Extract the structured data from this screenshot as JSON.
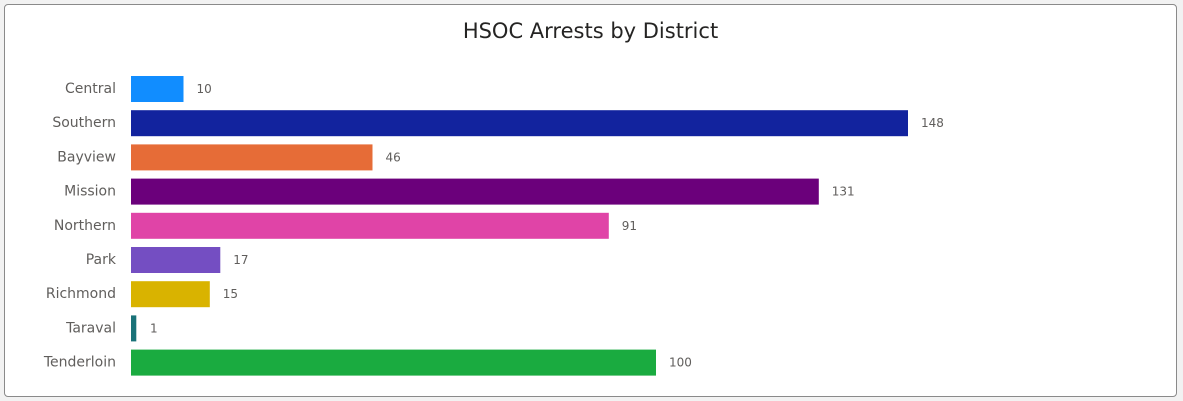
{
  "chart_data": {
    "type": "bar",
    "orientation": "horizontal",
    "title": "HSOC Arrests by District",
    "xlabel": "",
    "ylabel": "",
    "categories": [
      "Central",
      "Southern",
      "Bayview",
      "Mission",
      "Northern",
      "Park",
      "Richmond",
      "Taraval",
      "Tenderloin"
    ],
    "values": [
      10,
      148,
      46,
      131,
      91,
      17,
      15,
      1,
      100
    ],
    "colors": [
      "#118dff",
      "#12239e",
      "#e66c37",
      "#6b007b",
      "#e044a7",
      "#744ec2",
      "#d9b300",
      "#197278",
      "#1aab40"
    ],
    "xlim": [
      0,
      148
    ],
    "grid": false,
    "legend": "none",
    "data_labels": true
  }
}
